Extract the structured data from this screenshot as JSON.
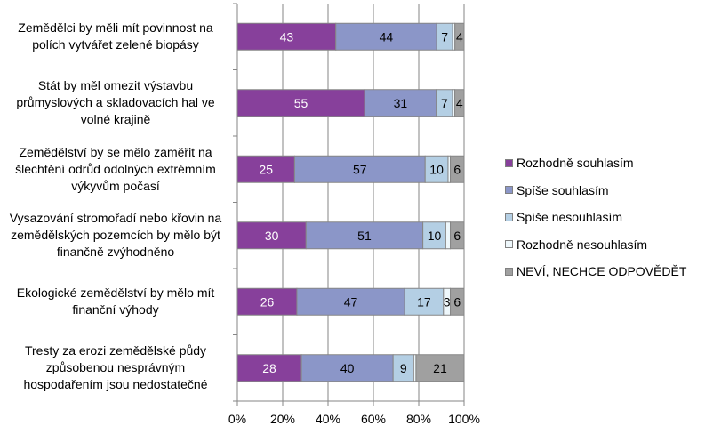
{
  "chart_data": {
    "type": "bar",
    "orientation": "horizontal",
    "stacked": "percent",
    "categories": [
      "Zemědělci by měli mít povinnost na polích vytvářet zelené biopásy",
      "Stát by měl omezit výstavbu průmyslových a skladovacích hal ve volné krajině",
      "Zemědělství by se mělo zaměřit na šlechtění odrůd odolných extrémním výkyvům počasí",
      "Vysazování stromořadí nebo křovin na zemědělských pozemcích by mělo být finančně zvýhodněno",
      "Ekologické zemědělství by mělo mít finanční výhody",
      "Tresty za erozi zemědělské půdy způsobenou nesprávným hospodařením jsou nedostatečné"
    ],
    "series": [
      {
        "name": "Rozhodně souhlasím",
        "color": "#87409B",
        "label_color": "#ffffff",
        "values": [
          43,
          55,
          25,
          30,
          26,
          28
        ],
        "labels": [
          "43",
          "55",
          "25",
          "30",
          "26",
          "28"
        ]
      },
      {
        "name": "Spíše souhlasím",
        "color": "#8B96C8",
        "label_color": "#000000",
        "values": [
          44,
          31,
          57,
          51,
          47,
          40
        ],
        "labels": [
          "44",
          "31",
          "57",
          "51",
          "47",
          "40"
        ]
      },
      {
        "name": "Spíše nesouhlasím",
        "color": "#B4CFE4",
        "label_color": "#000000",
        "values": [
          7,
          7,
          10,
          10,
          17,
          9
        ],
        "labels": [
          "7",
          "7",
          "10",
          "10",
          "17",
          "9"
        ]
      },
      {
        "name": "Rozhodně nesouhlasím",
        "color": "#EEF7FB",
        "label_color": "#000000",
        "values": [
          1,
          1,
          1,
          2,
          3,
          1
        ],
        "labels": [
          "",
          "",
          "",
          "",
          "3",
          ""
        ]
      },
      {
        "name": "NEVÍ, NECHCE ODPOVĚDĚT",
        "color": "#A0A0A0",
        "label_color": "#000000",
        "values": [
          4,
          4,
          6,
          6,
          6,
          21
        ],
        "labels": [
          "4",
          "4",
          "6",
          "6",
          "6",
          "21"
        ]
      }
    ],
    "xlim": [
      0,
      100
    ],
    "xticks": [
      "0%",
      "20%",
      "40%",
      "60%",
      "80%",
      "100%"
    ],
    "grid": true,
    "legend_position": "right",
    "title": "",
    "xlabel": "",
    "ylabel": ""
  }
}
